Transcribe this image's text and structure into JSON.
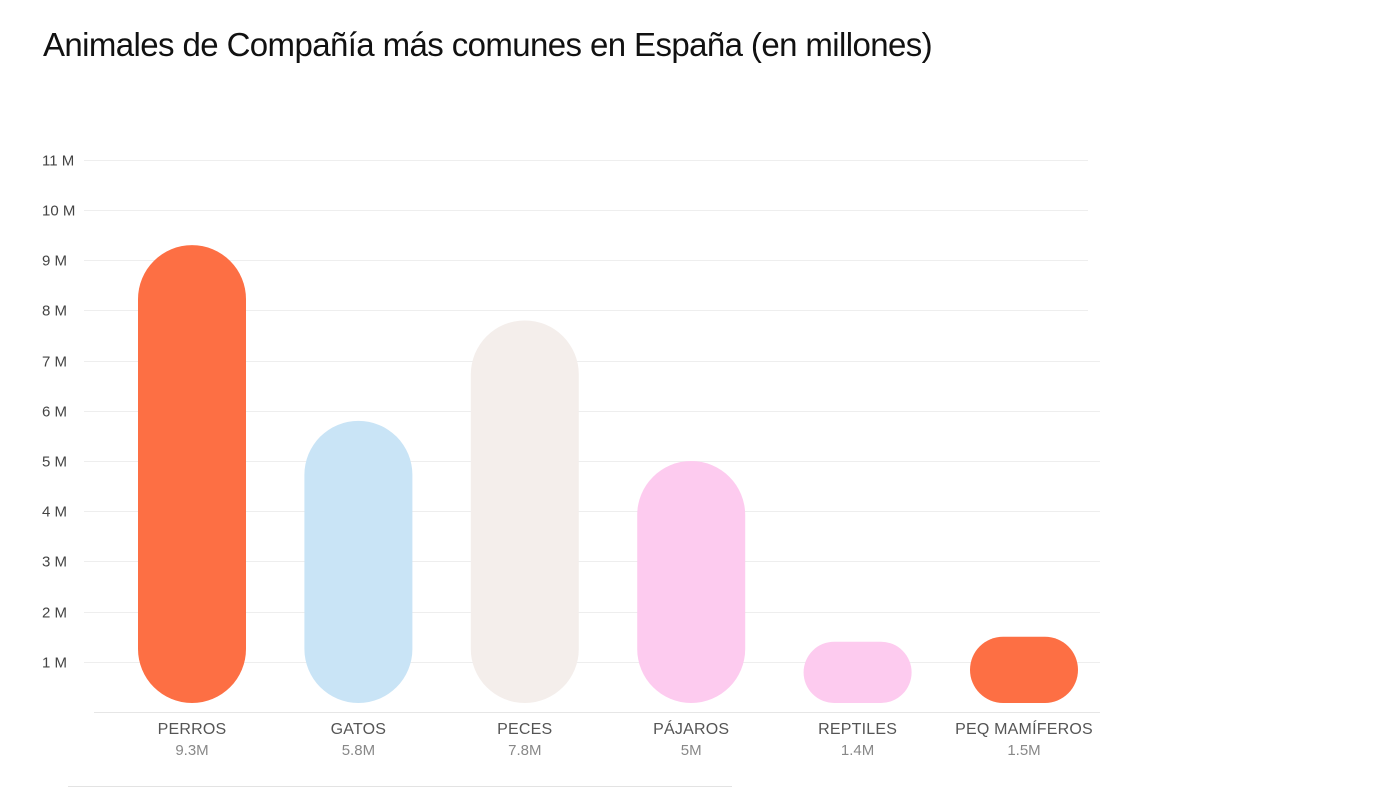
{
  "chart_data": {
    "type": "bar",
    "title": "Animales de Compañía más comunes en España (en millones)",
    "categories": [
      "PERROS",
      "GATOS",
      "PECES",
      "PÁJAROS",
      "REPTILES",
      "PEQ MAMÍFEROS"
    ],
    "values": [
      9.3,
      5.8,
      7.8,
      5,
      1.4,
      1.5
    ],
    "value_labels": [
      "9.3M",
      "5.8M",
      "7.8M",
      "5M",
      "1.4M",
      "1.5M"
    ],
    "bar_colors": [
      "#fd6f44",
      "#c9e4f6",
      "#f4eeeb",
      "#fdcbef",
      "#fdcbef",
      "#fd6f44"
    ],
    "yticks": [
      1,
      2,
      3,
      4,
      5,
      6,
      7,
      8,
      9,
      10,
      11
    ],
    "ytick_labels": [
      "1 M",
      "2 M",
      "3 M",
      "4 M",
      "5 M",
      "6 M",
      "7 M",
      "8 M",
      "9 M",
      "10 M",
      "11 M"
    ],
    "ylim": [
      0,
      11
    ],
    "xlabel": "",
    "ylabel": "",
    "grid": true,
    "legend": "none"
  }
}
